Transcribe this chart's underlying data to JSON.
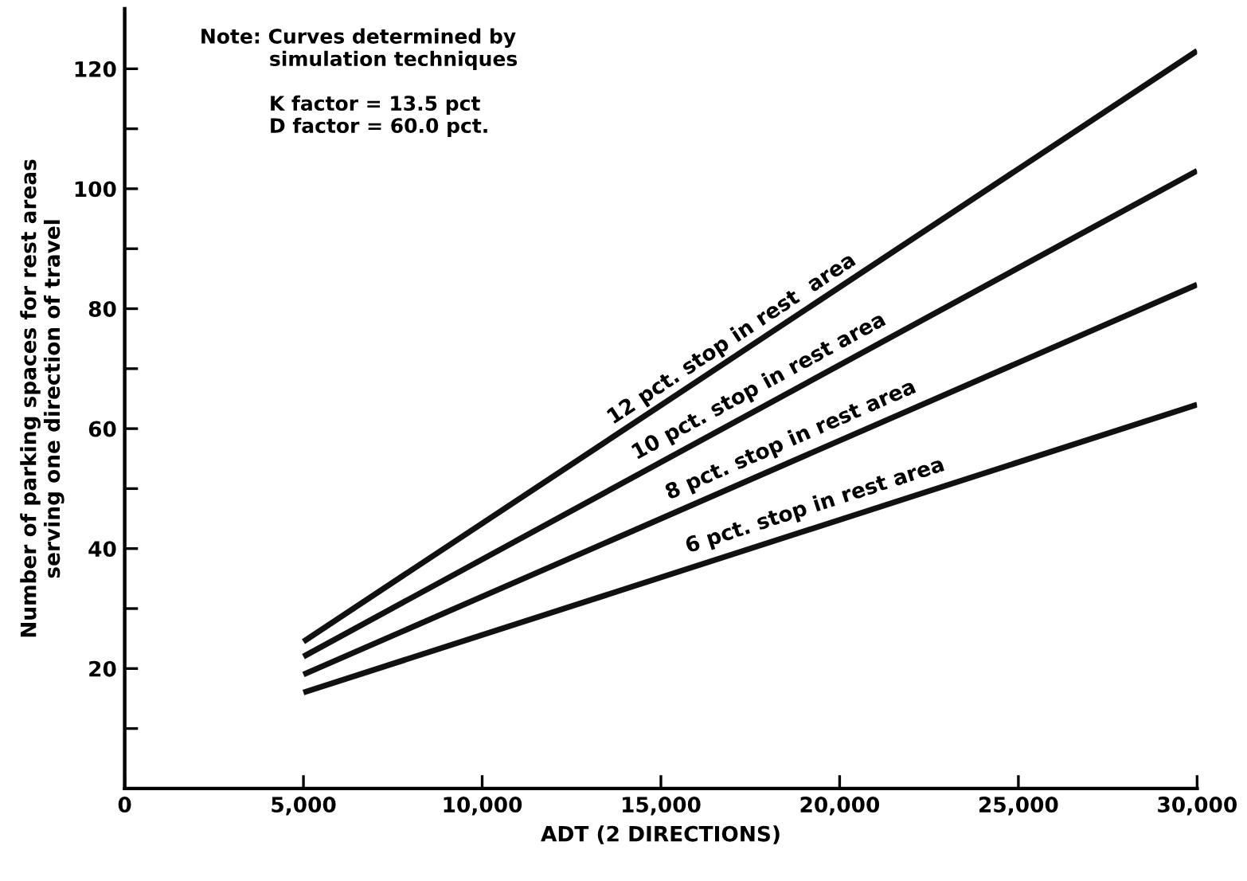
{
  "chart_data": {
    "type": "line",
    "xlabel": "ADT (2 DIRECTIONS)",
    "ylabel": "Number of parking spaces for rest areas\nserving one direction of travel",
    "x": [
      5000,
      30000
    ],
    "series": [
      {
        "color": "#111111",
        "values": [
          24.5,
          123
        ]
      },
      {
        "color": "#111111",
        "values": [
          22,
          103
        ]
      },
      {
        "color": "#111111",
        "values": [
          19,
          84
        ]
      },
      {
        "color": "#111111",
        "values": [
          16,
          64
        ]
      }
    ],
    "xlim": [
      0,
      30000
    ],
    "ylim": [
      0,
      130
    ],
    "xticks": [
      {
        "value": 0,
        "label": "0"
      },
      {
        "value": 5000,
        "label": "5,000"
      },
      {
        "value": 10000,
        "label": "10,000"
      },
      {
        "value": 15000,
        "label": "15,000"
      },
      {
        "value": 20000,
        "label": "20,000"
      },
      {
        "value": 25000,
        "label": "25,000"
      },
      {
        "value": 30000,
        "label": "30,000"
      }
    ],
    "yticks": [
      {
        "value": 10,
        "label": null
      },
      20,
      {
        "value": 30,
        "label": null
      },
      40,
      {
        "value": 50,
        "label": null
      },
      60,
      {
        "value": 70,
        "label": null
      },
      80,
      {
        "value": 90,
        "label": null
      },
      100,
      {
        "value": 110,
        "label": null
      },
      120
    ],
    "annotations": [
      "Note: Curves determined by\n          simulation techniques\n\n          K factor = 13.5 pct\n          D factor = 60.0 pct.",
      {
        "text": "12 pct. stop in rest  area",
        "x": 17140,
        "y": 72
      },
      {
        "text": "10 pct. stop in rest area",
        "x": 17880,
        "y": 64
      },
      {
        "text": "8 pct. stop in rest area",
        "x": 18750,
        "y": 55
      },
      {
        "text": "6 pct. stop in rest area",
        "x": 19400,
        "y": 44
      }
    ],
    "grid": false,
    "legend": false,
    "line_style": "solid",
    "marker": "none"
  }
}
